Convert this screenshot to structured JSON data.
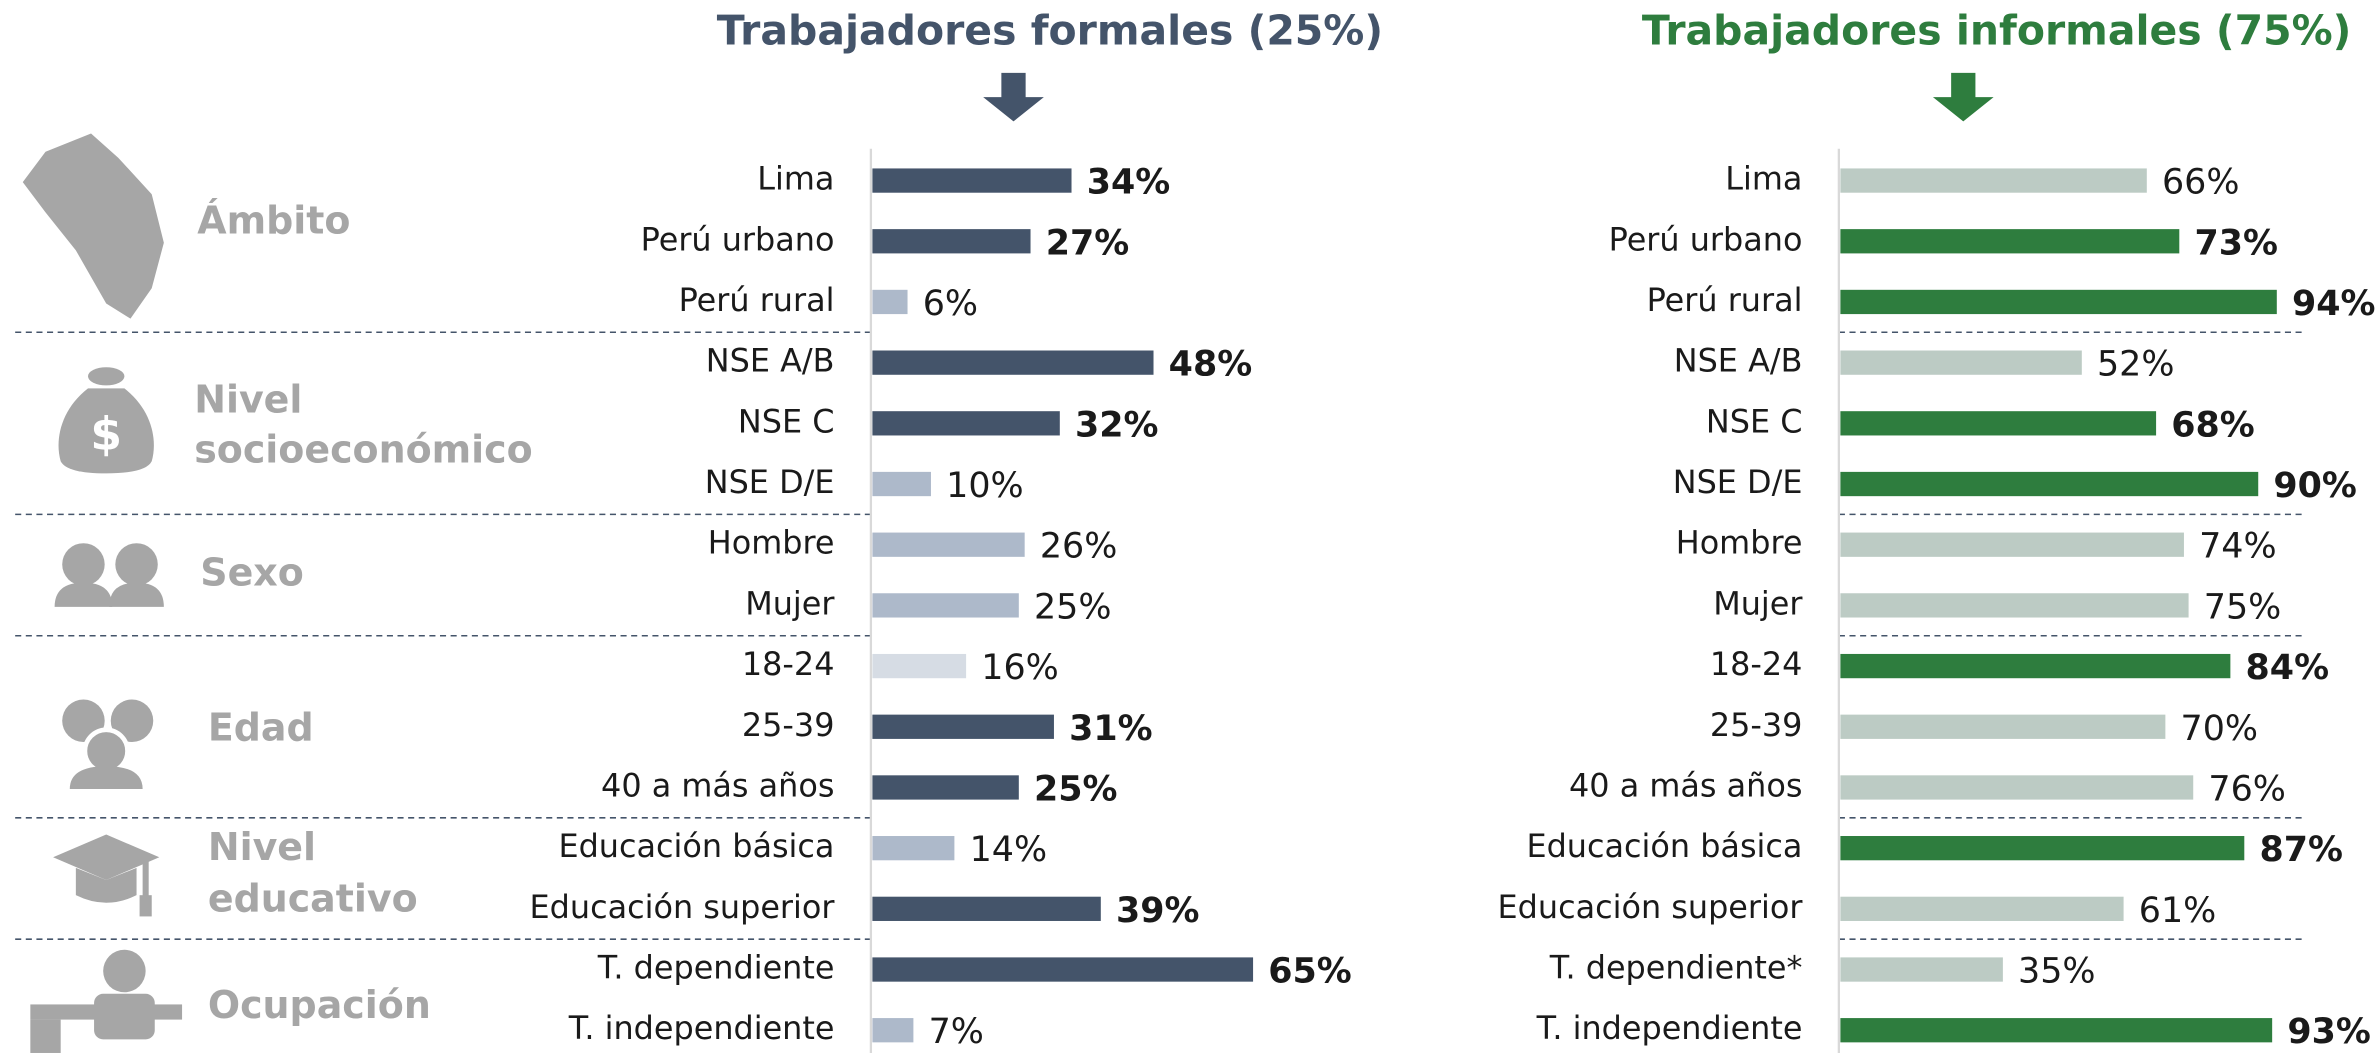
{
  "sections": [
    {
      "lines": [
        "Ámbito"
      ]
    },
    {
      "lines": [
        "Nivel",
        "socioeconómico"
      ]
    },
    {
      "lines": [
        "Sexo"
      ]
    },
    {
      "lines": [
        "Edad"
      ]
    },
    {
      "lines": [
        "Nivel",
        "educativo"
      ]
    },
    {
      "lines": [
        "Ocupación"
      ]
    }
  ],
  "chart_data": [
    {
      "type": "bar",
      "orientation": "horizontal",
      "title": "Trabajadores formales (25%)",
      "title_color": "#44546a",
      "groups": [
        {
          "categories": [
            "Lima",
            "Perú urbano",
            "Perú rural"
          ],
          "values": [
            34,
            27,
            6
          ],
          "value_labels": [
            "34%",
            "27%",
            "6%"
          ],
          "colors": [
            "#44546a",
            "#44546a",
            "#adb9ca"
          ],
          "label_colors": [
            "#e03024",
            "#e03024",
            "#1a1a1a"
          ]
        },
        {
          "categories": [
            "NSE A/B",
            "NSE C",
            "NSE D/E"
          ],
          "values": [
            48,
            32,
            10
          ],
          "value_labels": [
            "48%",
            "32%",
            "10%"
          ],
          "colors": [
            "#44546a",
            "#44546a",
            "#adb9ca"
          ],
          "label_colors": [
            "#e03024",
            "#e03024",
            "#1a1a1a"
          ]
        },
        {
          "categories": [
            "Hombre",
            "Mujer"
          ],
          "values": [
            26,
            25
          ],
          "value_labels": [
            "26%",
            "25%"
          ],
          "colors": [
            "#adb9ca",
            "#adb9ca"
          ],
          "label_colors": [
            "#1a1a1a",
            "#1a1a1a"
          ]
        },
        {
          "categories": [
            "18-24",
            "25-39",
            "40 a más años"
          ],
          "values": [
            16,
            31,
            25
          ],
          "value_labels": [
            "16%",
            "31%",
            "25%"
          ],
          "colors": [
            "#d6dce4",
            "#44546a",
            "#44546a"
          ],
          "label_colors": [
            "#1a1a1a",
            "#e03024",
            "#e03024"
          ]
        },
        {
          "categories": [
            "Educación básica",
            "Educación superior"
          ],
          "values": [
            14,
            39
          ],
          "value_labels": [
            "14%",
            "39%"
          ],
          "colors": [
            "#adb9ca",
            "#44546a"
          ],
          "label_colors": [
            "#1a1a1a",
            "#e03024"
          ]
        },
        {
          "categories": [
            "T. dependiente",
            "T. independiente"
          ],
          "values": [
            65,
            7
          ],
          "value_labels": [
            "65%",
            "7%"
          ],
          "colors": [
            "#44546a",
            "#adb9ca"
          ],
          "label_colors": [
            "#e03024",
            "#1a1a1a"
          ]
        }
      ]
    },
    {
      "type": "bar",
      "orientation": "horizontal",
      "title": "Trabajadores informales (75%)",
      "title_color": "#2e7d3e",
      "groups": [
        {
          "categories": [
            "Lima",
            "Perú urbano",
            "Perú rural"
          ],
          "values": [
            66,
            73,
            94
          ],
          "value_labels": [
            "66%",
            "73%",
            "94%"
          ],
          "colors": [
            "#bccbc4",
            "#2e7d3e",
            "#2e7d3e"
          ],
          "label_colors": [
            "#1a1a1a",
            "#e03024",
            "#e03024"
          ]
        },
        {
          "categories": [
            "NSE A/B",
            "NSE C",
            "NSE D/E"
          ],
          "values": [
            52,
            68,
            90
          ],
          "value_labels": [
            "52%",
            "68%",
            "90%"
          ],
          "colors": [
            "#bccbc4",
            "#2e7d3e",
            "#2e7d3e"
          ],
          "label_colors": [
            "#1a1a1a",
            "#e03024",
            "#e03024"
          ]
        },
        {
          "categories": [
            "Hombre",
            "Mujer"
          ],
          "values": [
            74,
            75
          ],
          "value_labels": [
            "74%",
            "75%"
          ],
          "colors": [
            "#bccbc4",
            "#bccbc4"
          ],
          "label_colors": [
            "#1a1a1a",
            "#1a1a1a"
          ]
        },
        {
          "categories": [
            "18-24",
            "25-39",
            "40 a más años"
          ],
          "values": [
            84,
            70,
            76
          ],
          "value_labels": [
            "84%",
            "70%",
            "76%"
          ],
          "colors": [
            "#2e7d3e",
            "#bccbc4",
            "#bccbc4"
          ],
          "label_colors": [
            "#e03024",
            "#1a1a1a",
            "#1a1a1a"
          ]
        },
        {
          "categories": [
            "Educación básica",
            "Educación superior"
          ],
          "values": [
            87,
            61
          ],
          "value_labels": [
            "87%",
            "61%"
          ],
          "colors": [
            "#2e7d3e",
            "#bccbc4"
          ],
          "label_colors": [
            "#e03024",
            "#1a1a1a"
          ]
        },
        {
          "categories": [
            "T. dependiente*",
            "T. independiente"
          ],
          "values": [
            35,
            93
          ],
          "value_labels": [
            "35%",
            "93%"
          ],
          "colors": [
            "#bccbc4",
            "#2e7d3e"
          ],
          "label_colors": [
            "#1a1a1a",
            "#e03024"
          ]
        }
      ]
    }
  ]
}
